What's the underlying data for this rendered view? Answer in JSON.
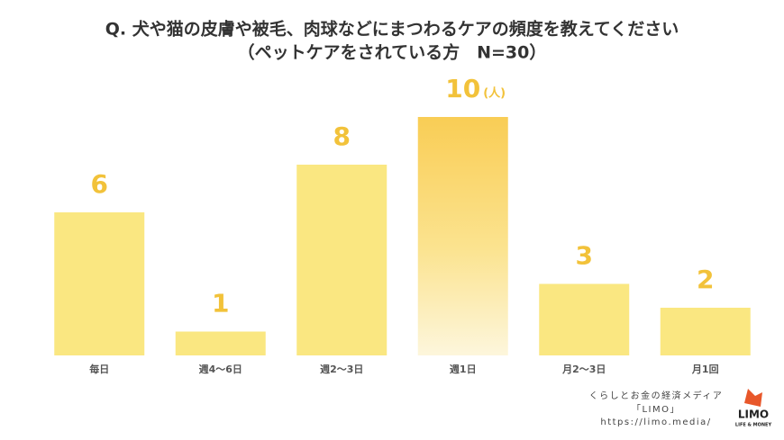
{
  "chart_data": {
    "type": "bar",
    "title": "Q. 犬や猫の皮膚や被毛、肉球などにまつわるケアの頻度を教えてください",
    "subtitle": "（ペットケアをされている方　N=30）",
    "unit": "(人)",
    "categories": [
      "毎日",
      "週4〜6日",
      "週2〜3日",
      "週1日",
      "月2〜3日",
      "月1回"
    ],
    "values": [
      6,
      1,
      8,
      10,
      3,
      2
    ],
    "colors": [
      "#fae781",
      "#fae781",
      "#fae781",
      "#f9cd55",
      "#fae781",
      "#fae781"
    ],
    "fade": [
      false,
      false,
      false,
      true,
      false,
      false
    ],
    "label_color": "#f2c23a"
  },
  "footer": {
    "tagline": "くらしとお金の経済メディア",
    "brand": "「LIMO」",
    "url": "https://limo.media/",
    "logo": "LIMO",
    "logo_sub": "LIFE & MONEY"
  }
}
